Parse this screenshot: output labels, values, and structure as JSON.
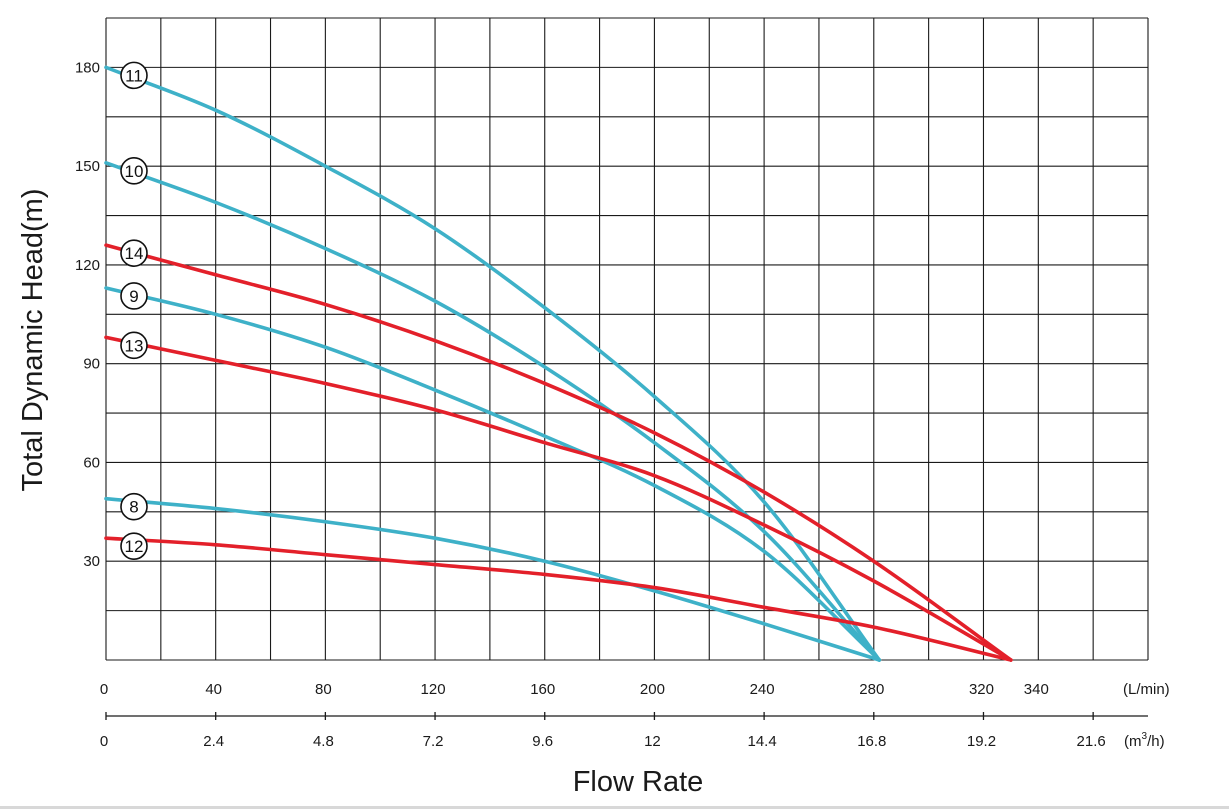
{
  "chart_data": {
    "type": "line",
    "title": "",
    "xlabel": "Flow Rate",
    "ylabel": "Total Dynamic Head(m)",
    "xlim": [
      0,
      380
    ],
    "ylim": [
      0,
      195
    ],
    "grid": true,
    "x_ticks_lmin": [
      "0",
      "40",
      "80",
      "120",
      "160",
      "200",
      "240",
      "280",
      "320",
      "340"
    ],
    "x_unit_lmin": "(L/min)",
    "x_ticks_m3h": [
      "0",
      "2.4",
      "4.8",
      "7.2",
      "9.6",
      "12",
      "14.4",
      "16.8",
      "19.2",
      "21.6"
    ],
    "x_unit_m3h_base": "(m",
    "x_unit_m3h_sup": "3",
    "x_unit_m3h_end": "/h)",
    "y_ticks": [
      "30",
      "60",
      "90",
      "120",
      "150",
      "180"
    ],
    "colors": {
      "teal": "#3eb1c8",
      "red": "#e3202a",
      "grid": "#1a1a1a"
    },
    "series": [
      {
        "name": "11",
        "color": "teal",
        "x": [
          0,
          40,
          80,
          120,
          160,
          200,
          240,
          282
        ],
        "y": [
          180,
          167,
          150,
          131,
          107,
          80,
          48,
          0
        ]
      },
      {
        "name": "10",
        "color": "teal",
        "x": [
          0,
          40,
          80,
          120,
          160,
          200,
          240,
          282
        ],
        "y": [
          151,
          139,
          125,
          109,
          89,
          66,
          39,
          0
        ]
      },
      {
        "name": "14",
        "color": "red",
        "x": [
          0,
          40,
          80,
          120,
          160,
          200,
          240,
          280,
          330
        ],
        "y": [
          126,
          117,
          108,
          97,
          84,
          69,
          51,
          30,
          0
        ]
      },
      {
        "name": "9",
        "color": "teal",
        "x": [
          0,
          40,
          80,
          120,
          160,
          200,
          240,
          282
        ],
        "y": [
          113,
          105,
          95,
          82,
          68,
          53,
          33,
          0
        ]
      },
      {
        "name": "13",
        "color": "red",
        "x": [
          0,
          40,
          80,
          120,
          160,
          200,
          240,
          280,
          330
        ],
        "y": [
          98,
          91,
          84,
          76,
          66,
          56,
          41,
          24,
          0
        ]
      },
      {
        "name": "8",
        "color": "teal",
        "x": [
          0,
          40,
          80,
          120,
          160,
          200,
          240,
          282
        ],
        "y": [
          49,
          46,
          42,
          37,
          30,
          21,
          11,
          0
        ]
      },
      {
        "name": "12",
        "color": "red",
        "x": [
          0,
          40,
          80,
          120,
          160,
          200,
          240,
          280,
          330
        ],
        "y": [
          37,
          35,
          32,
          29,
          26,
          22,
          16,
          10,
          0
        ]
      }
    ]
  }
}
